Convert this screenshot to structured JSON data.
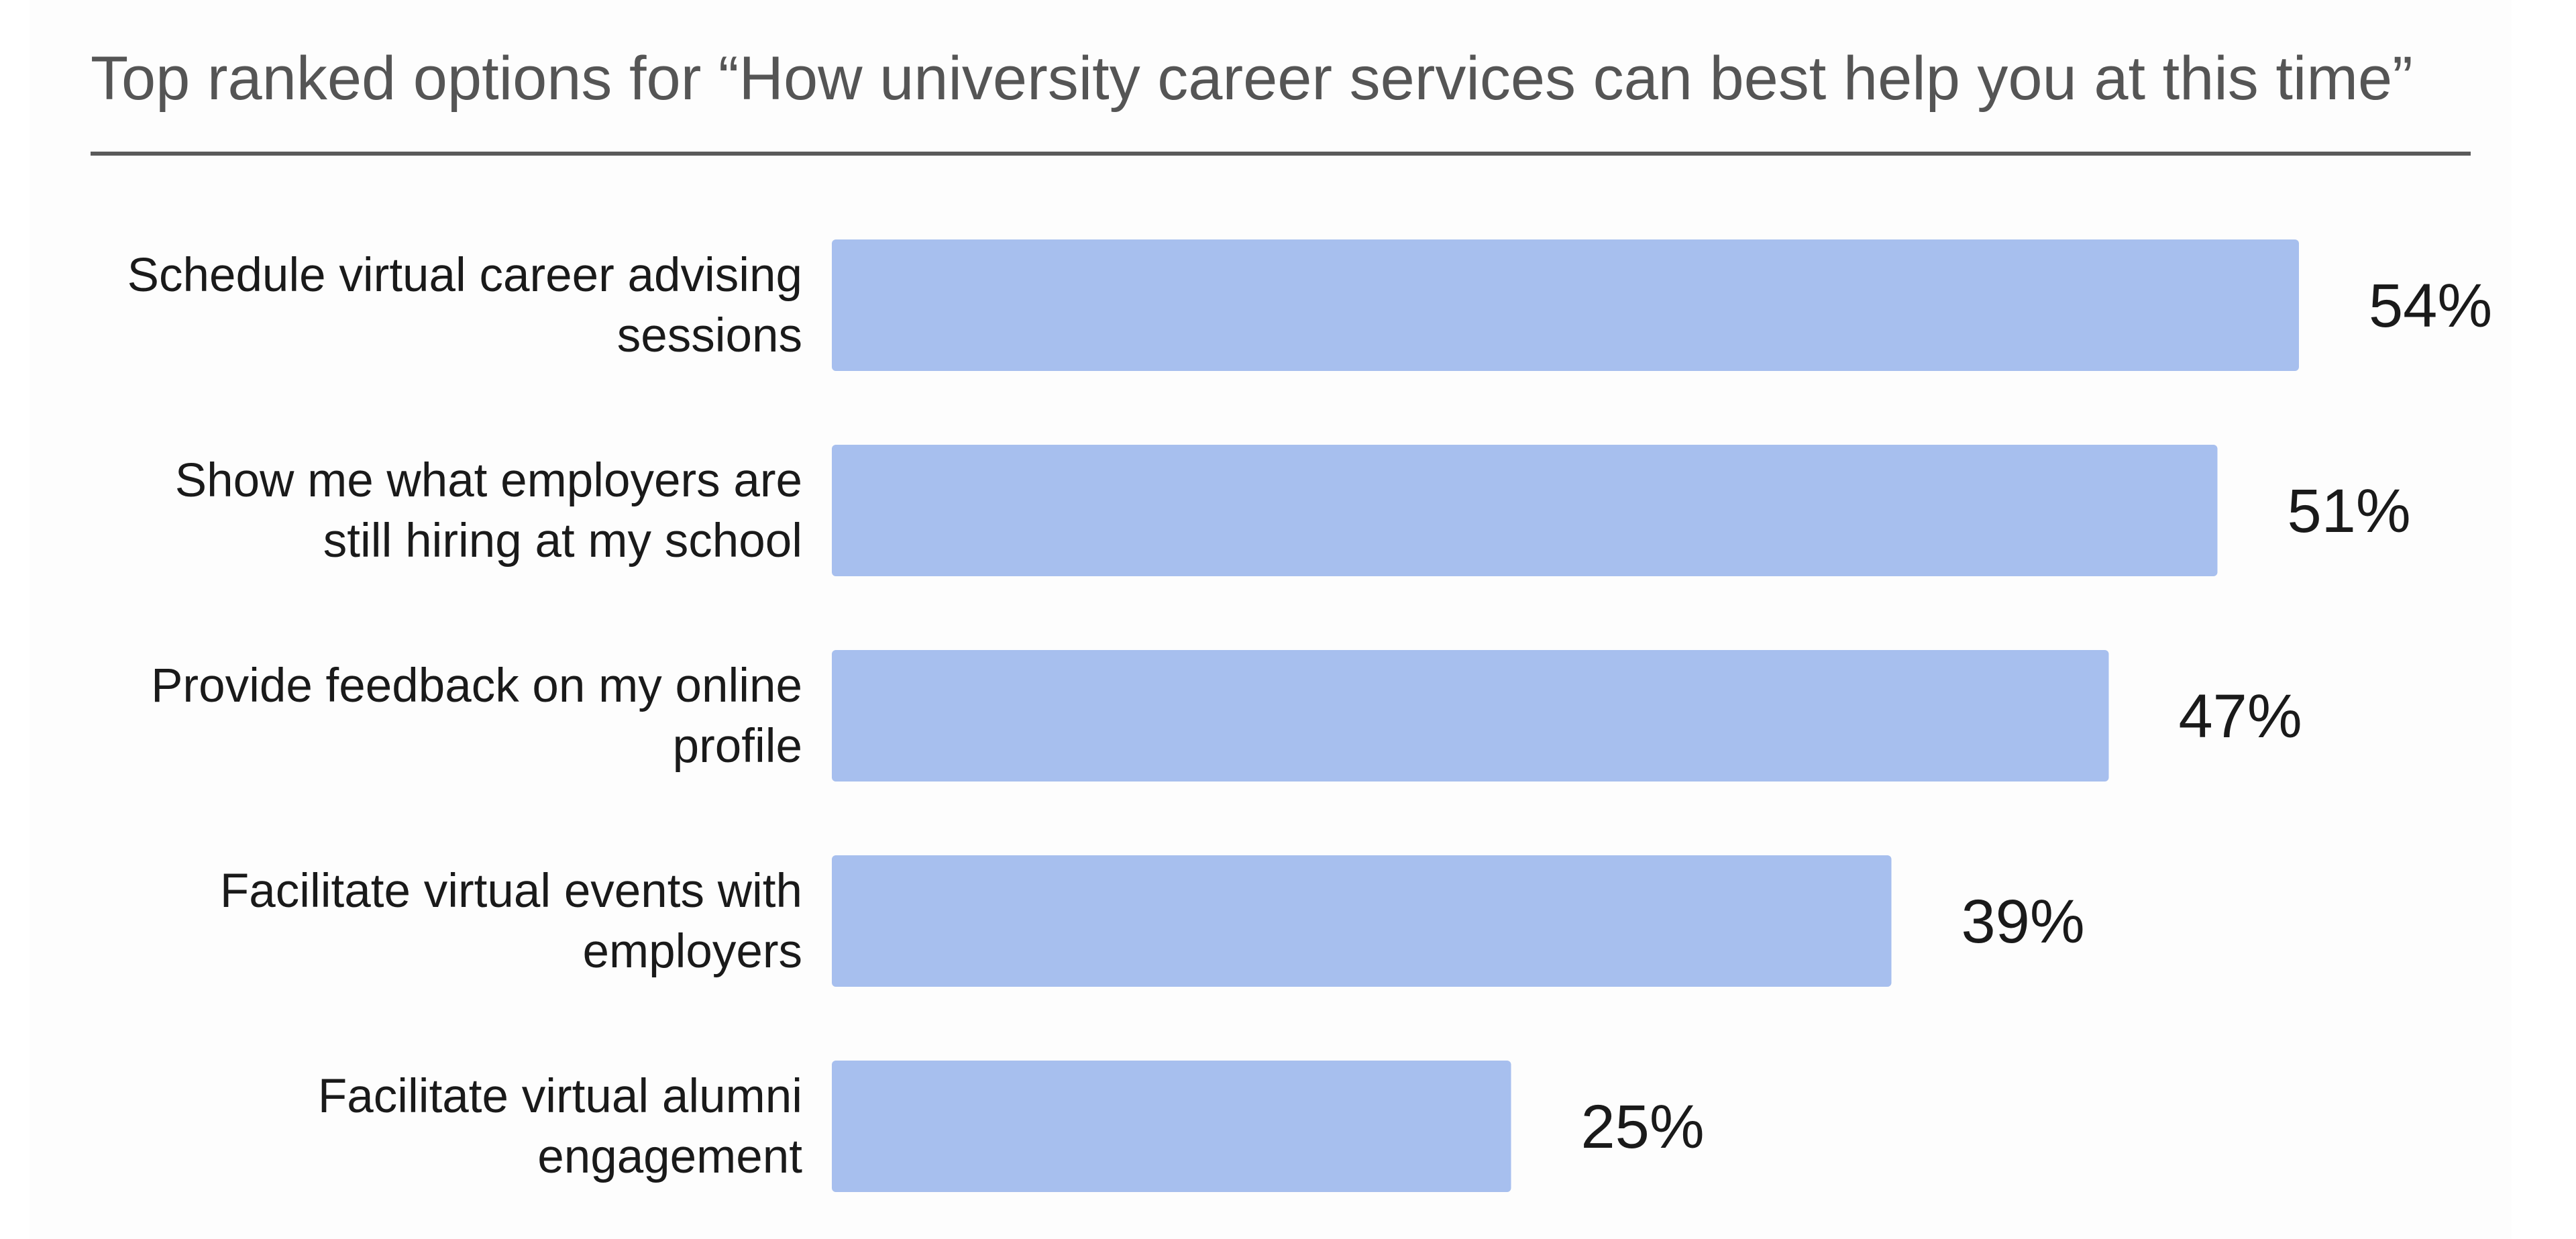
{
  "chart_data": {
    "type": "bar",
    "orientation": "horizontal",
    "title": "Top ranked options for “How university career services can best help you at this time”",
    "categories": [
      [
        "Schedule virtual career advising",
        "sessions"
      ],
      [
        "Show me what employers are",
        "still hiring at my school"
      ],
      [
        "Provide feedback on my online",
        "profile"
      ],
      [
        "Facilitate virtual events with",
        "employers"
      ],
      [
        "Facilitate virtual alumni",
        "engagement"
      ]
    ],
    "values": [
      54,
      51,
      47,
      39,
      25
    ],
    "value_labels": [
      "54%",
      "51%",
      "47%",
      "39%",
      "25%"
    ],
    "xlabel": "",
    "ylabel": "",
    "grid": false,
    "legend": "none",
    "bar_color": "#a7bfee"
  }
}
